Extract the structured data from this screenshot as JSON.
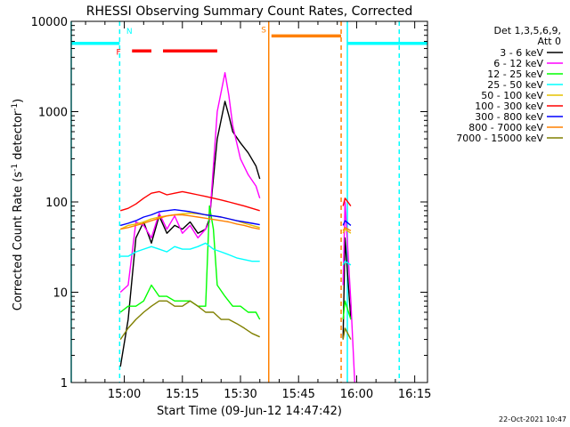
{
  "chart_data": {
    "type": "line",
    "title": "RHESSI Observing Summary Count Rates, Corrected",
    "xlabel": "Start Time (09-Jun-12 14:47:42)",
    "ylabel_main": "Corrected Count Rate (s",
    "ylabel_sup1": "-1",
    "ylabel_mid": " detector",
    "ylabel_sup2": "-1",
    "ylabel_end": ")",
    "y_scale": "log",
    "ylim": [
      1,
      10000
    ],
    "xlim_minutes": [
      -13.7,
      78.3
    ],
    "x_ticks": [
      {
        "label": "15:00",
        "t": 0
      },
      {
        "label": "15:15",
        "t": 15
      },
      {
        "label": "15:30",
        "t": 30
      },
      {
        "label": "15:45",
        "t": 45
      },
      {
        "label": "16:00",
        "t": 60
      },
      {
        "label": "16:15",
        "t": 75
      }
    ],
    "y_ticks": [
      {
        "label": "1",
        "v": 1
      },
      {
        "label": "10",
        "v": 10
      },
      {
        "label": "100",
        "v": 100
      },
      {
        "label": "1000",
        "v": 1000
      },
      {
        "label": "10000",
        "v": 10000
      }
    ],
    "legend_header": [
      "Det 1,3,5,6,9,",
      "Att 0"
    ],
    "legend_position": "right",
    "timestamp": "22-Oct-2021 10:47",
    "series": [
      {
        "name": "3 - 6 keV",
        "color": "#000000",
        "segments": [
          {
            "t": [
              -1,
              1,
              3,
              5,
              7,
              9,
              11,
              13,
              15,
              17,
              19,
              21,
              22,
              24,
              26,
              27,
              28,
              30,
              32,
              34,
              35
            ],
            "v": [
              1.5,
              5,
              40,
              60,
              35,
              70,
              45,
              55,
              50,
              60,
              45,
              50,
              65,
              500,
              1300,
              900,
              600,
              450,
              350,
              250,
              180
            ]
          },
          {
            "t": [
              56.5,
              57,
              58.5
            ],
            "v": [
              3,
              40,
              5
            ]
          }
        ]
      },
      {
        "name": "6 - 12 keV",
        "color": "#ff00ff",
        "segments": [
          {
            "t": [
              -1,
              1,
              3,
              5,
              7,
              9,
              11,
              13,
              15,
              17,
              19,
              21,
              22,
              24,
              26,
              27,
              28,
              30,
              32,
              34,
              35
            ],
            "v": [
              10,
              12,
              60,
              55,
              40,
              75,
              50,
              70,
              45,
              55,
              40,
              50,
              60,
              1000,
              2700,
              1500,
              700,
              300,
              200,
              150,
              110
            ]
          },
          {
            "t": [
              56.5,
              57,
              58.5,
              59.5
            ],
            "v": [
              12,
              100,
              8,
              1
            ]
          }
        ]
      },
      {
        "name": "12 - 25 keV",
        "color": "#00ff00",
        "segments": [
          {
            "t": [
              -1,
              1,
              3,
              5,
              7,
              9,
              11,
              13,
              15,
              17,
              19,
              21,
              22,
              23,
              24,
              26,
              28,
              30,
              32,
              34,
              35
            ],
            "v": [
              6,
              7,
              7,
              8,
              12,
              9,
              9,
              8,
              8,
              8,
              7,
              7,
              90,
              50,
              12,
              9,
              7,
              7,
              6,
              6,
              5
            ]
          },
          {
            "t": [
              56.5,
              57,
              58.5
            ],
            "v": [
              5,
              8,
              5
            ]
          }
        ]
      },
      {
        "name": "25 - 50 keV",
        "color": "#00ffff",
        "segments": [
          {
            "t": [
              -1,
              1,
              3,
              5,
              7,
              9,
              11,
              13,
              15,
              17,
              19,
              21,
              23,
              25,
              27,
              29,
              31,
              33,
              35
            ],
            "v": [
              25,
              25,
              28,
              30,
              32,
              30,
              28,
              32,
              30,
              30,
              32,
              35,
              30,
              28,
              26,
              24,
              23,
              22,
              22
            ]
          },
          {
            "t": [
              56.5,
              57,
              58.5
            ],
            "v": [
              20,
              22,
              20
            ]
          }
        ]
      },
      {
        "name": "50 - 100 keV",
        "color": "#e6c200",
        "segments": [
          {
            "t": [
              -1,
              1,
              3,
              5,
              7,
              9,
              11,
              13,
              15,
              17,
              19,
              21,
              23,
              25,
              27,
              29,
              31,
              33,
              35
            ],
            "v": [
              50,
              55,
              57,
              60,
              65,
              68,
              70,
              72,
              74,
              75,
              74,
              72,
              70,
              68,
              65,
              62,
              58,
              55,
              52
            ]
          },
          {
            "t": [
              56.5,
              57,
              58.5
            ],
            "v": [
              45,
              50,
              45
            ]
          }
        ]
      },
      {
        "name": "100 - 300 keV",
        "color": "#ff0000",
        "segments": [
          {
            "t": [
              -1,
              1,
              3,
              5,
              7,
              9,
              11,
              13,
              15,
              17,
              19,
              21,
              23,
              25,
              27,
              29,
              31,
              33,
              35
            ],
            "v": [
              80,
              85,
              95,
              110,
              125,
              130,
              120,
              125,
              130,
              125,
              120,
              115,
              110,
              105,
              100,
              95,
              90,
              85,
              80
            ]
          },
          {
            "t": [
              56.5,
              57,
              58.5
            ],
            "v": [
              90,
              110,
              90
            ]
          }
        ]
      },
      {
        "name": "300 - 800 keV",
        "color": "#0000ff",
        "segments": [
          {
            "t": [
              -1,
              1,
              3,
              5,
              7,
              9,
              11,
              13,
              15,
              17,
              19,
              21,
              23,
              25,
              27,
              29,
              31,
              33,
              35
            ],
            "v": [
              55,
              58,
              62,
              68,
              72,
              78,
              80,
              82,
              80,
              78,
              75,
              72,
              70,
              68,
              65,
              62,
              60,
              58,
              56
            ]
          },
          {
            "t": [
              56.5,
              57,
              58.5
            ],
            "v": [
              55,
              62,
              55
            ]
          }
        ]
      },
      {
        "name": "800 - 7000 keV",
        "color": "#ff8000",
        "segments": [
          {
            "t": [
              -1,
              1,
              3,
              5,
              7,
              9,
              11,
              13,
              15,
              17,
              19,
              21,
              23,
              25,
              27,
              29,
              31,
              33,
              35
            ],
            "v": [
              50,
              52,
              55,
              58,
              62,
              66,
              70,
              72,
              72,
              70,
              68,
              66,
              64,
              62,
              60,
              57,
              55,
              52,
              50
            ]
          },
          {
            "t": [
              56.5,
              57,
              58.5
            ],
            "v": [
              48,
              52,
              48
            ]
          }
        ]
      },
      {
        "name": "7000 - 15000 keV",
        "color": "#808000",
        "segments": [
          {
            "t": [
              -1,
              1,
              3,
              5,
              7,
              9,
              11,
              13,
              15,
              17,
              19,
              21,
              23,
              25,
              27,
              29,
              31,
              33,
              35
            ],
            "v": [
              3,
              4,
              5,
              6,
              7,
              8,
              8,
              7,
              7,
              8,
              7,
              6,
              6,
              5,
              5,
              4.5,
              4,
              3.5,
              3.2
            ]
          },
          {
            "t": [
              56.5,
              57,
              58.5
            ],
            "v": [
              3,
              4,
              3
            ]
          }
        ]
      }
    ],
    "flag_bars": [
      {
        "label": "",
        "color": "#00ffff",
        "v": 5700,
        "ranges": [
          [
            -13.7,
            -1.2
          ],
          [
            57.6,
            78.3
          ]
        ]
      },
      {
        "label": "F",
        "color": "#ff0000",
        "v": 4700,
        "ranges": [
          [
            2,
            7
          ],
          [
            10,
            24
          ]
        ]
      },
      {
        "label": "S",
        "color": "#ff8000",
        "v": 6900,
        "ranges": [
          [
            38,
            56
          ]
        ]
      }
    ],
    "flag_labels": [
      {
        "text": "F",
        "color": "#ff0000",
        "t": -1.5,
        "v": 4700
      },
      {
        "text": "N",
        "color": "#00ffff",
        "t": 1.3,
        "v": 8000
      },
      {
        "text": "S",
        "color": "#ff8000",
        "t": 36,
        "v": 8200
      }
    ],
    "vertical_markers": [
      {
        "t": -13.7,
        "color": "#00ffff",
        "style": "solid"
      },
      {
        "t": -1.2,
        "color": "#00ffff",
        "style": "dashed"
      },
      {
        "t": 37.3,
        "color": "#ff8000",
        "style": "solid"
      },
      {
        "t": 56.0,
        "color": "#ff8000",
        "style": "dashed"
      },
      {
        "t": 57.6,
        "color": "#00ffff",
        "style": "solid"
      },
      {
        "t": 71.0,
        "color": "#00ffff",
        "style": "dashed"
      }
    ]
  }
}
